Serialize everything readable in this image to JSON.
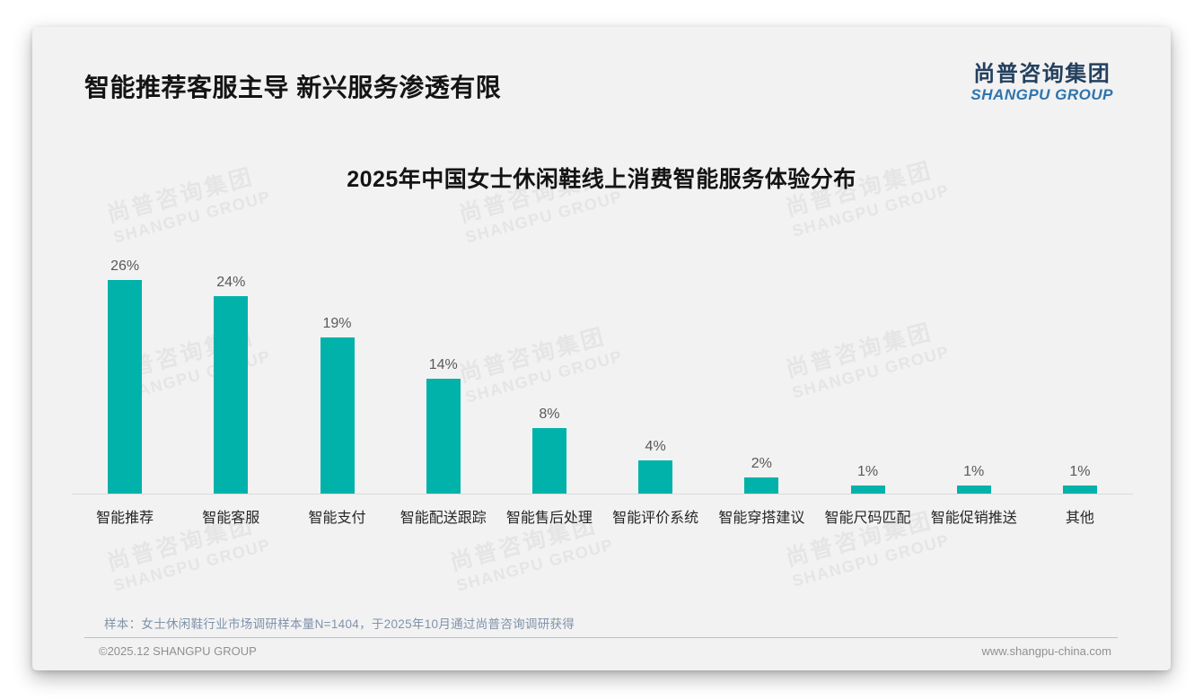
{
  "page": {
    "title": "智能推荐客服主导 新兴服务渗透有限",
    "logo": {
      "cn": "尚普咨询集团",
      "en": "SHANGPU GROUP"
    },
    "watermark": {
      "cn": "尚普咨询集团",
      "en": "SHANGPU GROUP"
    },
    "footnote": "样本：女士休闲鞋行业市场调研样本量N=1404，于2025年10月通过尚普咨询调研获得",
    "footer_left": "©2025.12 SHANGPU GROUP",
    "footer_right": "www.shangpu-china.com"
  },
  "colors": {
    "bar": "#00b2aa",
    "logo_cn": "#24405e",
    "logo_en": "#2e74ae"
  },
  "chart_data": {
    "type": "bar",
    "title": "2025年中国女士休闲鞋线上消费智能服务体验分布",
    "categories": [
      "智能推荐",
      "智能客服",
      "智能支付",
      "智能配送跟踪",
      "智能售后处理",
      "智能评价系统",
      "智能穿搭建议",
      "智能尺码匹配",
      "智能促销推送",
      "其他"
    ],
    "values": [
      26,
      24,
      19,
      14,
      8,
      4,
      2,
      1,
      1,
      1
    ],
    "unit": "%",
    "value_label_format": "{v}%",
    "xlabel": "",
    "ylabel": "",
    "ylim": [
      0,
      28
    ],
    "grid": false,
    "legend": false
  }
}
